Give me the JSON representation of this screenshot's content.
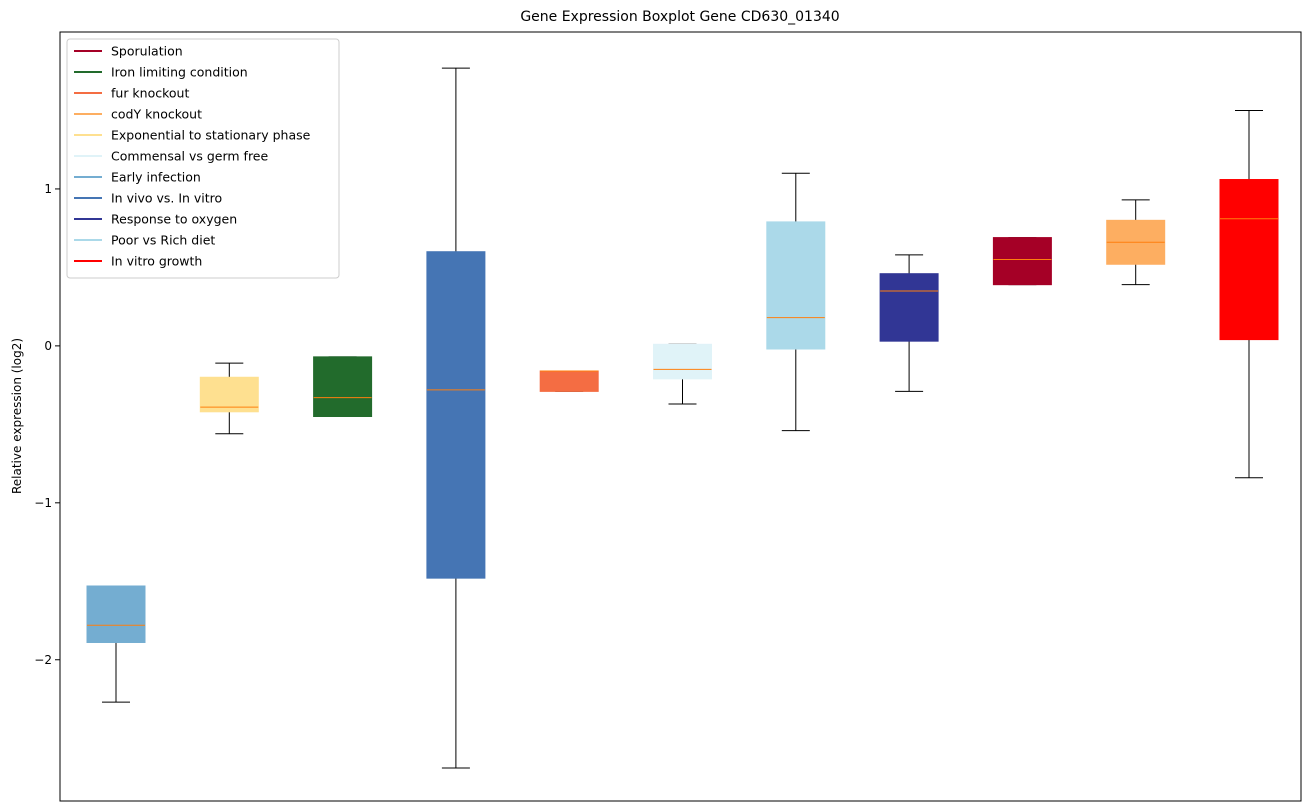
{
  "chart_data": {
    "type": "boxplot",
    "title": "Gene Expression Boxplot Gene CD630_01340",
    "xlabel": "",
    "ylabel": "Relative expression (log2)",
    "ylim": [
      -2.9,
      2.0
    ],
    "yticks": [
      1,
      0,
      -1,
      -2
    ],
    "ytick_labels": [
      "1",
      "0",
      "−1",
      "−2"
    ],
    "legend_position": "top-left",
    "legend": [
      {
        "label": "Sporulation",
        "color": "#a50026"
      },
      {
        "label": "Iron limiting condition",
        "color": "#226b2c"
      },
      {
        "label": "fur knockout",
        "color": "#f46d43"
      },
      {
        "label": "codY knockout",
        "color": "#fdae61"
      },
      {
        "label": "Exponential to stationary phase",
        "color": "#fee090"
      },
      {
        "label": "Commensal vs germ free",
        "color": "#e0f3f8"
      },
      {
        "label": "Early infection",
        "color": "#74add1"
      },
      {
        "label": "In vivo vs. In vitro",
        "color": "#4575b4"
      },
      {
        "label": "Response to oxygen",
        "color": "#313695"
      },
      {
        "label": "Poor vs Rich diet",
        "color": "#abd9e9"
      },
      {
        "label": "In vitro growth",
        "color": "#ff0000"
      }
    ],
    "boxes": [
      {
        "group": "Early infection",
        "color": "#74add1",
        "whislo": -2.27,
        "q1": -1.89,
        "med": -1.78,
        "q3": -1.53,
        "whishi": -1.53
      },
      {
        "group": "Exponential to stationary phase",
        "color": "#fee090",
        "whislo": -0.56,
        "q1": -0.42,
        "med": -0.39,
        "q3": -0.2,
        "whishi": -0.11
      },
      {
        "group": "Iron limiting condition",
        "color": "#226b2c",
        "whislo": -0.45,
        "q1": -0.45,
        "med": -0.33,
        "q3": -0.07,
        "whishi": -0.07
      },
      {
        "group": "In vivo vs. In vitro",
        "color": "#4575b4",
        "whislo": -2.69,
        "q1": -1.48,
        "med": -0.28,
        "q3": 0.6,
        "whishi": 1.77
      },
      {
        "group": "fur knockout",
        "color": "#f46d43",
        "whislo": -0.29,
        "q1": -0.29,
        "med": -0.16,
        "q3": -0.16,
        "whishi": -0.16
      },
      {
        "group": "Commensal vs germ free",
        "color": "#e0f3f8",
        "whislo": -0.37,
        "q1": -0.21,
        "med": -0.15,
        "q3": 0.01,
        "whishi": 0.01
      },
      {
        "group": "Poor vs Rich diet",
        "color": "#abd9e9",
        "whislo": -0.54,
        "q1": -0.02,
        "med": 0.18,
        "q3": 0.79,
        "whishi": 1.1
      },
      {
        "group": "Response to oxygen",
        "color": "#313695",
        "whislo": -0.29,
        "q1": 0.03,
        "med": 0.35,
        "q3": 0.46,
        "whishi": 0.58
      },
      {
        "group": "Sporulation",
        "color": "#a50026",
        "whislo": 0.39,
        "q1": 0.39,
        "med": 0.55,
        "q3": 0.69,
        "whishi": 0.69
      },
      {
        "group": "codY knockout",
        "color": "#fdae61",
        "whislo": 0.39,
        "q1": 0.52,
        "med": 0.66,
        "q3": 0.8,
        "whishi": 0.93
      },
      {
        "group": "In vitro growth",
        "color": "#ff0000",
        "whislo": -0.84,
        "q1": 0.04,
        "med": 0.81,
        "q3": 1.06,
        "whishi": 1.5
      }
    ],
    "median_color": "#ff7f0e"
  }
}
